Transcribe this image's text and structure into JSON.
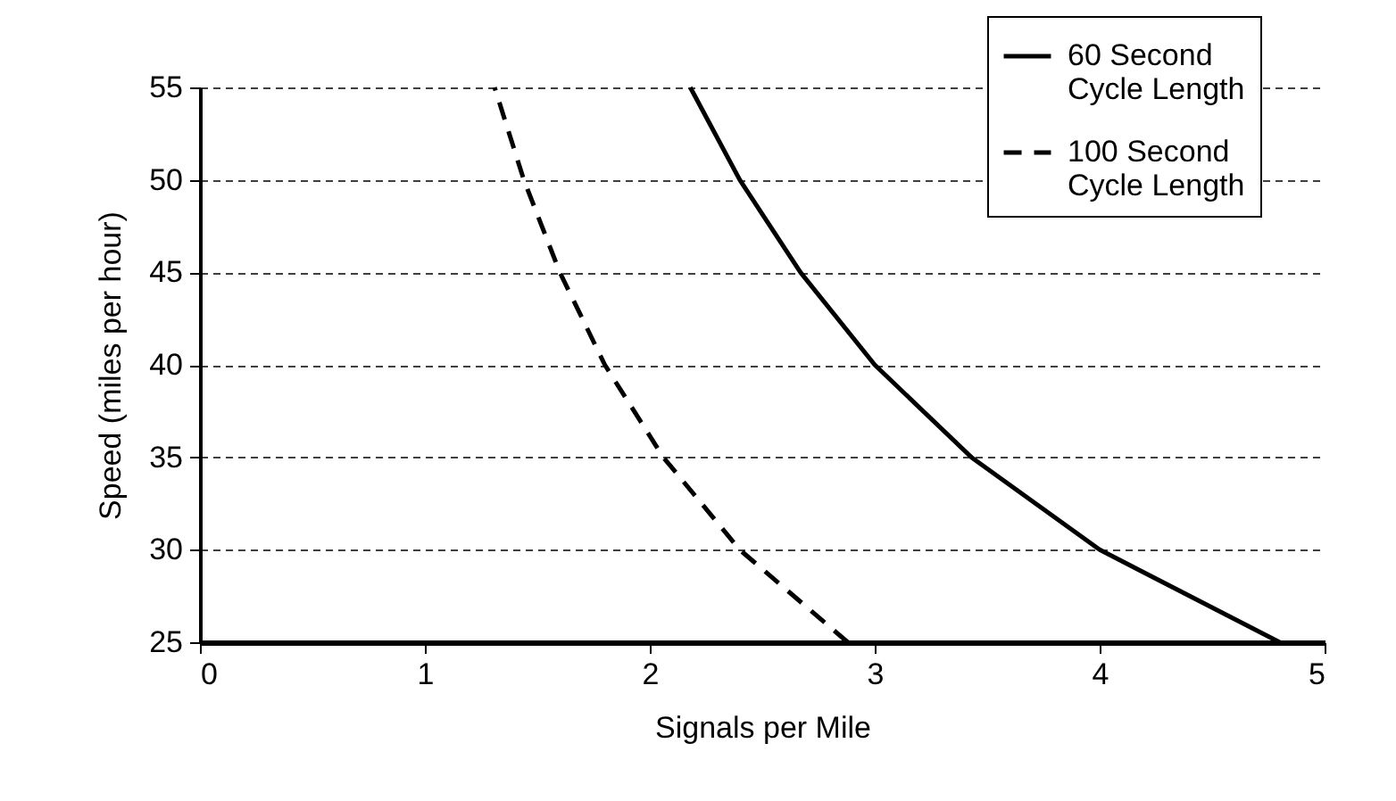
{
  "chart_data": {
    "type": "line",
    "xlabel": "Signals per Mile",
    "ylabel": "Speed (miles per hour)",
    "series": [
      {
        "name": "60 Second Cycle Length",
        "color": "#000000",
        "line_style": "solid",
        "x": [
          4.8,
          4.0,
          3.43,
          3.0,
          2.67,
          2.4,
          2.18
        ],
        "values": [
          25,
          30,
          35,
          40,
          45,
          50,
          55
        ]
      },
      {
        "name": "100 Second Cycle Length",
        "color": "#000000",
        "line_style": "dashed",
        "x": [
          2.88,
          2.4,
          2.06,
          1.8,
          1.6,
          1.44,
          1.31
        ],
        "values": [
          25,
          30,
          35,
          40,
          45,
          50,
          55
        ]
      }
    ],
    "xlim": [
      0,
      5
    ],
    "xticks": [
      0,
      1,
      2,
      3,
      4,
      5
    ],
    "ylim": [
      25,
      55
    ],
    "yticks": [
      25,
      30,
      35,
      40,
      45,
      50,
      55
    ],
    "grid": "y",
    "legend": "top right",
    "marker": "none"
  }
}
